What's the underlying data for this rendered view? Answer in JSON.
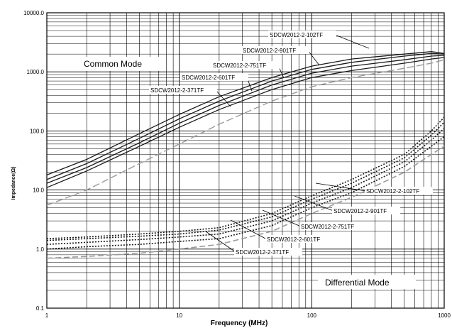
{
  "chart_data": {
    "type": "line",
    "xlabel": "Frequency (MHz)",
    "ylabel": "Impedance(Ω)",
    "xscale": "log",
    "yscale": "log",
    "xlim": [
      1,
      1000
    ],
    "ylim": [
      0.1,
      10000
    ],
    "grid": true,
    "x_tick_labels": [
      "1",
      "10",
      "100",
      "1000"
    ],
    "y_tick_labels": [
      "0.1",
      "1.0",
      "10.0",
      "100.0",
      "1000.0",
      "10000.0"
    ],
    "annotations": [
      "Common Mode",
      "Differential Mode"
    ],
    "x": [
      1,
      2,
      5,
      10,
      20,
      50,
      100,
      200,
      500,
      800,
      1000
    ],
    "common_mode": [
      {
        "name": "SDCW2012-2-102TF",
        "values": [
          18,
          33,
          90,
          190,
          380,
          800,
          1250,
          1650,
          2000,
          2200,
          2050
        ]
      },
      {
        "name": "SDCW2012-2-901TF",
        "values": [
          15,
          28,
          75,
          160,
          320,
          700,
          1100,
          1450,
          1850,
          2050,
          2000
        ]
      },
      {
        "name": "SDCW2012-2-751TF",
        "values": [
          13,
          24,
          63,
          135,
          270,
          600,
          950,
          1250,
          1600,
          1850,
          1900
        ]
      },
      {
        "name": "SDCW2012-2-601TF",
        "values": [
          11,
          21,
          55,
          115,
          230,
          500,
          800,
          1050,
          1400,
          1650,
          1750
        ]
      },
      {
        "name": "SDCW2012-2-371TF",
        "values": [
          5.5,
          10,
          28,
          60,
          130,
          320,
          560,
          800,
          1150,
          1400,
          1600
        ]
      }
    ],
    "differential_mode": [
      {
        "name": "SDCW2012-2-102TF",
        "values": [
          1.5,
          1.6,
          1.8,
          2.0,
          2.3,
          4.0,
          8.0,
          15,
          40,
          100,
          170
        ]
      },
      {
        "name": "SDCW2012-2-901TF",
        "values": [
          1.4,
          1.5,
          1.65,
          1.8,
          2.1,
          3.5,
          7.0,
          13,
          35,
          85,
          140
        ]
      },
      {
        "name": "SDCW2012-2-751TF",
        "values": [
          1.2,
          1.3,
          1.45,
          1.6,
          1.8,
          3.0,
          6.0,
          11,
          30,
          70,
          110
        ]
      },
      {
        "name": "SDCW2012-2-601TF",
        "values": [
          1.0,
          1.1,
          1.2,
          1.35,
          1.5,
          2.5,
          5.0,
          9,
          25,
          55,
          80
        ]
      },
      {
        "name": "SDCW2012-2-371TF",
        "values": [
          0.7,
          0.75,
          0.85,
          1.0,
          1.2,
          2.0,
          4.0,
          7.5,
          20,
          40,
          55
        ]
      }
    ]
  }
}
